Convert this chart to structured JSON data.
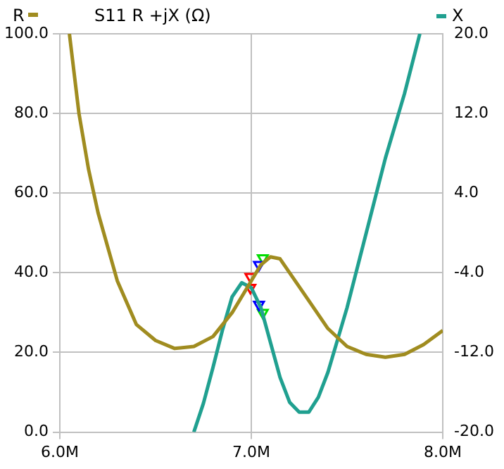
{
  "chart_data": {
    "type": "line",
    "title": "S11 R +jX (Ω)",
    "legend": "top",
    "grid": true,
    "xlim": [
      6.0,
      8.0
    ],
    "xticks": [
      {
        "value": 6.0,
        "label": "6.0M"
      },
      {
        "value": 7.0,
        "label": "7.0M"
      },
      {
        "value": 8.0,
        "label": "8.0M"
      }
    ],
    "ylim": [
      0,
      100
    ],
    "yticks": [
      {
        "value": 0,
        "label": "0.0"
      },
      {
        "value": 20,
        "label": "20.0"
      },
      {
        "value": 40,
        "label": "40.0"
      },
      {
        "value": 60,
        "label": "60.0"
      },
      {
        "value": 80,
        "label": "80.0"
      },
      {
        "value": 100,
        "label": "100.0"
      }
    ],
    "y2lim": [
      -20,
      20
    ],
    "y2ticks": [
      {
        "value": -20,
        "label": "-20.0"
      },
      {
        "value": -12,
        "label": "-12.0"
      },
      {
        "value": -4,
        "label": "-4.0"
      },
      {
        "value": 4,
        "label": "4.0"
      },
      {
        "value": 12,
        "label": "12.0"
      },
      {
        "value": 20,
        "label": "20.0"
      }
    ],
    "series": [
      {
        "name": "R",
        "color": "#a08c20",
        "x": [
          6.05,
          6.1,
          6.15,
          6.2,
          6.3,
          6.4,
          6.5,
          6.6,
          6.7,
          6.8,
          6.9,
          7.0,
          7.05,
          7.1,
          7.15,
          7.2,
          7.3,
          7.4,
          7.5,
          7.6,
          7.7,
          7.8,
          7.9,
          8.0
        ],
        "values": [
          100,
          80,
          66,
          55,
          38,
          27,
          23,
          21,
          21.5,
          24,
          30,
          38,
          42,
          44,
          43.5,
          40,
          33,
          26,
          21.5,
          19.5,
          18.8,
          19.5,
          22,
          25.5
        ]
      },
      {
        "name": "X",
        "color": "#20a090",
        "axis": "y2",
        "x": [
          6.7,
          6.75,
          6.8,
          6.85,
          6.9,
          6.95,
          7.0,
          7.05,
          7.1,
          7.15,
          7.2,
          7.25,
          7.3,
          7.35,
          7.4,
          7.5,
          7.6,
          7.7,
          7.8,
          7.88
        ],
        "values": [
          -20,
          -17.1,
          -13.5,
          -9.7,
          -6.4,
          -5,
          -5.5,
          -7.5,
          -11,
          -14.5,
          -17,
          -18,
          -18,
          -16.5,
          -14,
          -7.5,
          0,
          7.5,
          14,
          20
        ]
      },
      {
        "type": "scatter",
        "marker": "triangle",
        "color": "#ff0000",
        "x": [
          6.995
        ],
        "values": [
          39
        ]
      },
      {
        "type": "scatter",
        "marker": "triangle",
        "color": "#ff0000",
        "axis": "y2",
        "x": [
          6.995
        ],
        "values": [
          -5.5
        ]
      },
      {
        "type": "scatter",
        "marker": "triangle",
        "color": "#0000ff",
        "x": [
          7.04
        ],
        "values": [
          42
        ]
      },
      {
        "type": "scatter",
        "marker": "triangle",
        "color": "#0000ff",
        "axis": "y2",
        "x": [
          7.04
        ],
        "values": [
          -7.2
        ]
      },
      {
        "type": "scatter",
        "marker": "triangle",
        "color": "#00dd00",
        "x": [
          7.06
        ],
        "values": [
          43.7
        ]
      },
      {
        "type": "scatter",
        "marker": "triangle",
        "color": "#00dd00",
        "axis": "y2",
        "x": [
          7.06
        ],
        "values": [
          -8
        ]
      }
    ]
  }
}
